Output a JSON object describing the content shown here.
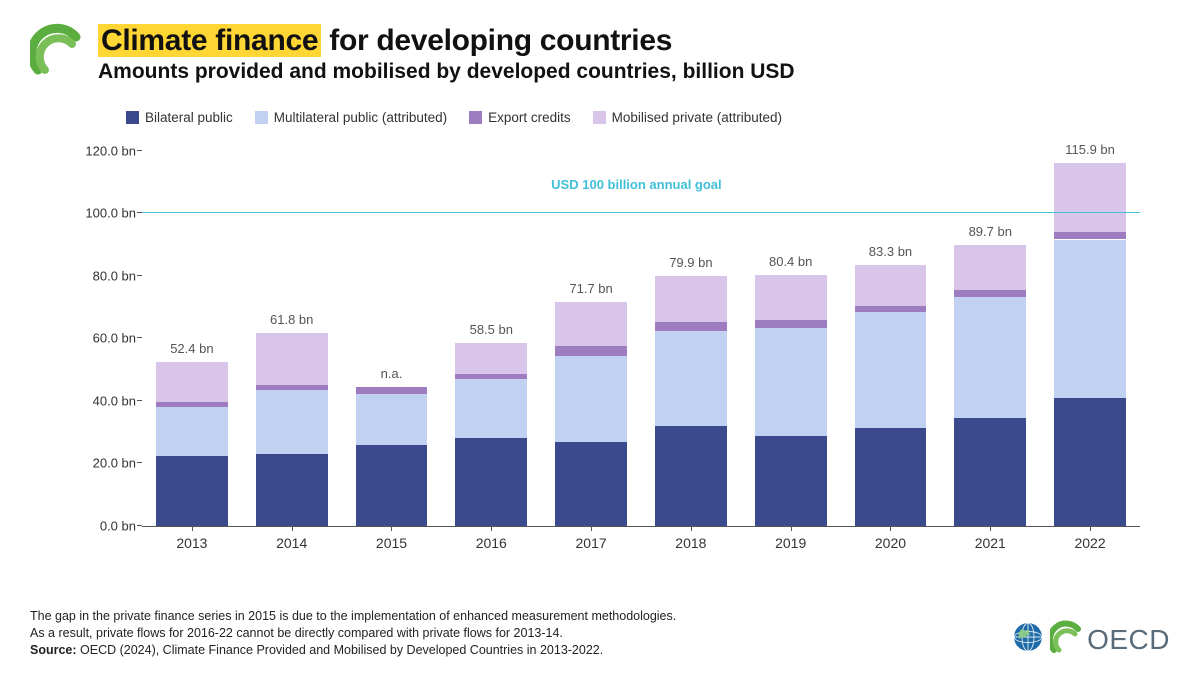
{
  "title": {
    "highlighted": "Climate finance",
    "rest": " for developing countries",
    "subtitle": "Amounts provided and mobilised by developed countries, billion USD",
    "title_fontsize": 30,
    "subtitle_fontsize": 21,
    "highlight_bg": "#ffd633"
  },
  "legend": {
    "items": [
      {
        "label": "Bilateral public",
        "color": "#3a4a8c"
      },
      {
        "label": "Multilateral public (attributed)",
        "color": "#c1d1f1"
      },
      {
        "label": "Export credits",
        "color": "#9d7cc0"
      },
      {
        "label": "Mobilised private (attributed)",
        "color": "#d9c5ea"
      }
    ],
    "fontsize": 13.5
  },
  "chart": {
    "type": "stacked-bar",
    "ylim": [
      0,
      125
    ],
    "yticks": [
      0,
      20,
      40,
      60,
      80,
      100,
      120
    ],
    "ytick_labels": [
      "0.0 bn",
      "20.0 bn",
      "40.0 bn",
      "60.0 bn",
      "80.0 bn",
      "100.0 bn",
      "120.0 bn"
    ],
    "goal": {
      "value": 100,
      "label": "USD 100 billion annual goal",
      "color": "#40c0d8"
    },
    "categories": [
      "2013",
      "2014",
      "2015",
      "2016",
      "2017",
      "2018",
      "2019",
      "2020",
      "2021",
      "2022"
    ],
    "series_colors": [
      "#3a4a8c",
      "#c1d1f1",
      "#9d7cc0",
      "#d9c5ea"
    ],
    "stacks": [
      [
        22.5,
        15.5,
        1.6,
        12.8
      ],
      [
        23.1,
        20.4,
        1.6,
        16.7
      ],
      [
        25.9,
        16.2,
        2.5,
        0.0
      ],
      [
        28.0,
        19.0,
        1.5,
        10.0
      ],
      [
        27.0,
        27.5,
        3.0,
        14.2
      ],
      [
        32.0,
        30.5,
        2.7,
        14.7
      ],
      [
        28.7,
        34.7,
        2.6,
        14.4
      ],
      [
        31.4,
        36.9,
        1.9,
        13.1
      ],
      [
        34.5,
        38.7,
        2.4,
        14.1
      ],
      [
        41.0,
        50.6,
        2.4,
        21.9
      ]
    ],
    "bar_labels": [
      "52.4 bn",
      "61.8 bn",
      "n.a.",
      "58.5 bn",
      "71.7 bn",
      "79.9 bn",
      "80.4 bn",
      "83.3 bn",
      "89.7 bn",
      "115.9 bn"
    ],
    "bar_width_pct": 72,
    "label_fontsize": 13,
    "xlabel_fontsize": 14,
    "axis_color": "#555555",
    "background_color": "#ffffff"
  },
  "footer": {
    "note1": "The gap in the private finance series in 2015 is due to the implementation of enhanced measurement methodologies.",
    "note2": "As a result, private flows for 2016-22 cannot be directly compared with private flows for 2013-14.",
    "source_label": "Source: ",
    "source_text": "OECD (2024), Climate Finance Provided and Mobilised by Developed Countries in 2013-2022.",
    "brand_text": "OECD",
    "fontsize": 12.5
  },
  "logo": {
    "arc_outer": "#5aad3e",
    "arc_inner": "#7abf57",
    "globe_fill": "#1e6aa8",
    "brand_text_color": "#5a6b7a"
  }
}
